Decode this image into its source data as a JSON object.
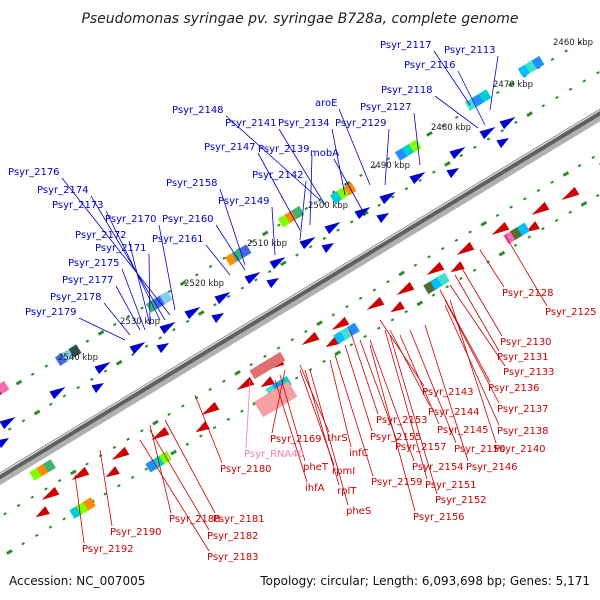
{
  "title": "Pseudomonas syringae pv. syringae B728a, complete genome",
  "footer": {
    "accession": "Accession: NC_007005",
    "summary": "Topology: circular; Length: 6,093,698 bp; Genes: 5,171"
  },
  "colors": {
    "forward": "#0000cc",
    "reverse": "#cc0000",
    "rna": "#f080b0",
    "backbone": "#808080",
    "tick": "#2e8b2e"
  },
  "scale_labels": [
    "2460 kbp",
    "2470 kbp",
    "2480 kbp",
    "2490 kbp",
    "2500 kbp",
    "2510 kbp",
    "2520 kbp",
    "2530 kbp",
    "2540 kbp"
  ],
  "genes_forward": [
    "Psyr_2117",
    "Psyr_2113",
    "Psyr_2116",
    "Psyr_2118",
    "aroE",
    "Psyr_2127",
    "Psyr_2148",
    "Psyr_2141",
    "Psyr_2134",
    "Psyr_2129",
    "Psyr_2147",
    "Psyr_2139",
    "mobA",
    "Psyr_2142",
    "Psyr_2158",
    "Psyr_2149",
    "Psyr_2176",
    "Psyr_2174",
    "Psyr_2173",
    "Psyr_2170",
    "Psyr_2160",
    "Psyr_2172",
    "Psyr_2161",
    "Psyr_2171",
    "Psyr_2175",
    "Psyr_2177",
    "Psyr_2178",
    "Psyr_2179"
  ],
  "genes_reverse": [
    "Psyr_2128",
    "Psyr_2125",
    "Psyr_2130",
    "Psyr_2131",
    "Psyr_2133",
    "Psyr_2136",
    "Psyr_2143",
    "Psyr_2137",
    "Psyr_2144",
    "Psyr_2153",
    "Psyr_2145",
    "Psyr_2138",
    "Psyr_2169",
    "thrS",
    "Psyr_2155",
    "infC",
    "Psyr_2157",
    "Psyr_2150",
    "Psyr_2140",
    "pheT",
    "rpmI",
    "Psyr_2154",
    "Psyr_2146",
    "Psyr_2180",
    "ihfA",
    "rplT",
    "Psyr_2159",
    "Psyr_2151",
    "Psyr_2152",
    "pheS",
    "Psyr_2156",
    "Psyr_2181",
    "Psyr_2188",
    "Psyr_2190",
    "Psyr_2182",
    "Psyr_2192",
    "Psyr_2183"
  ],
  "genes_rna": [
    "Psyr_RNA40"
  ]
}
